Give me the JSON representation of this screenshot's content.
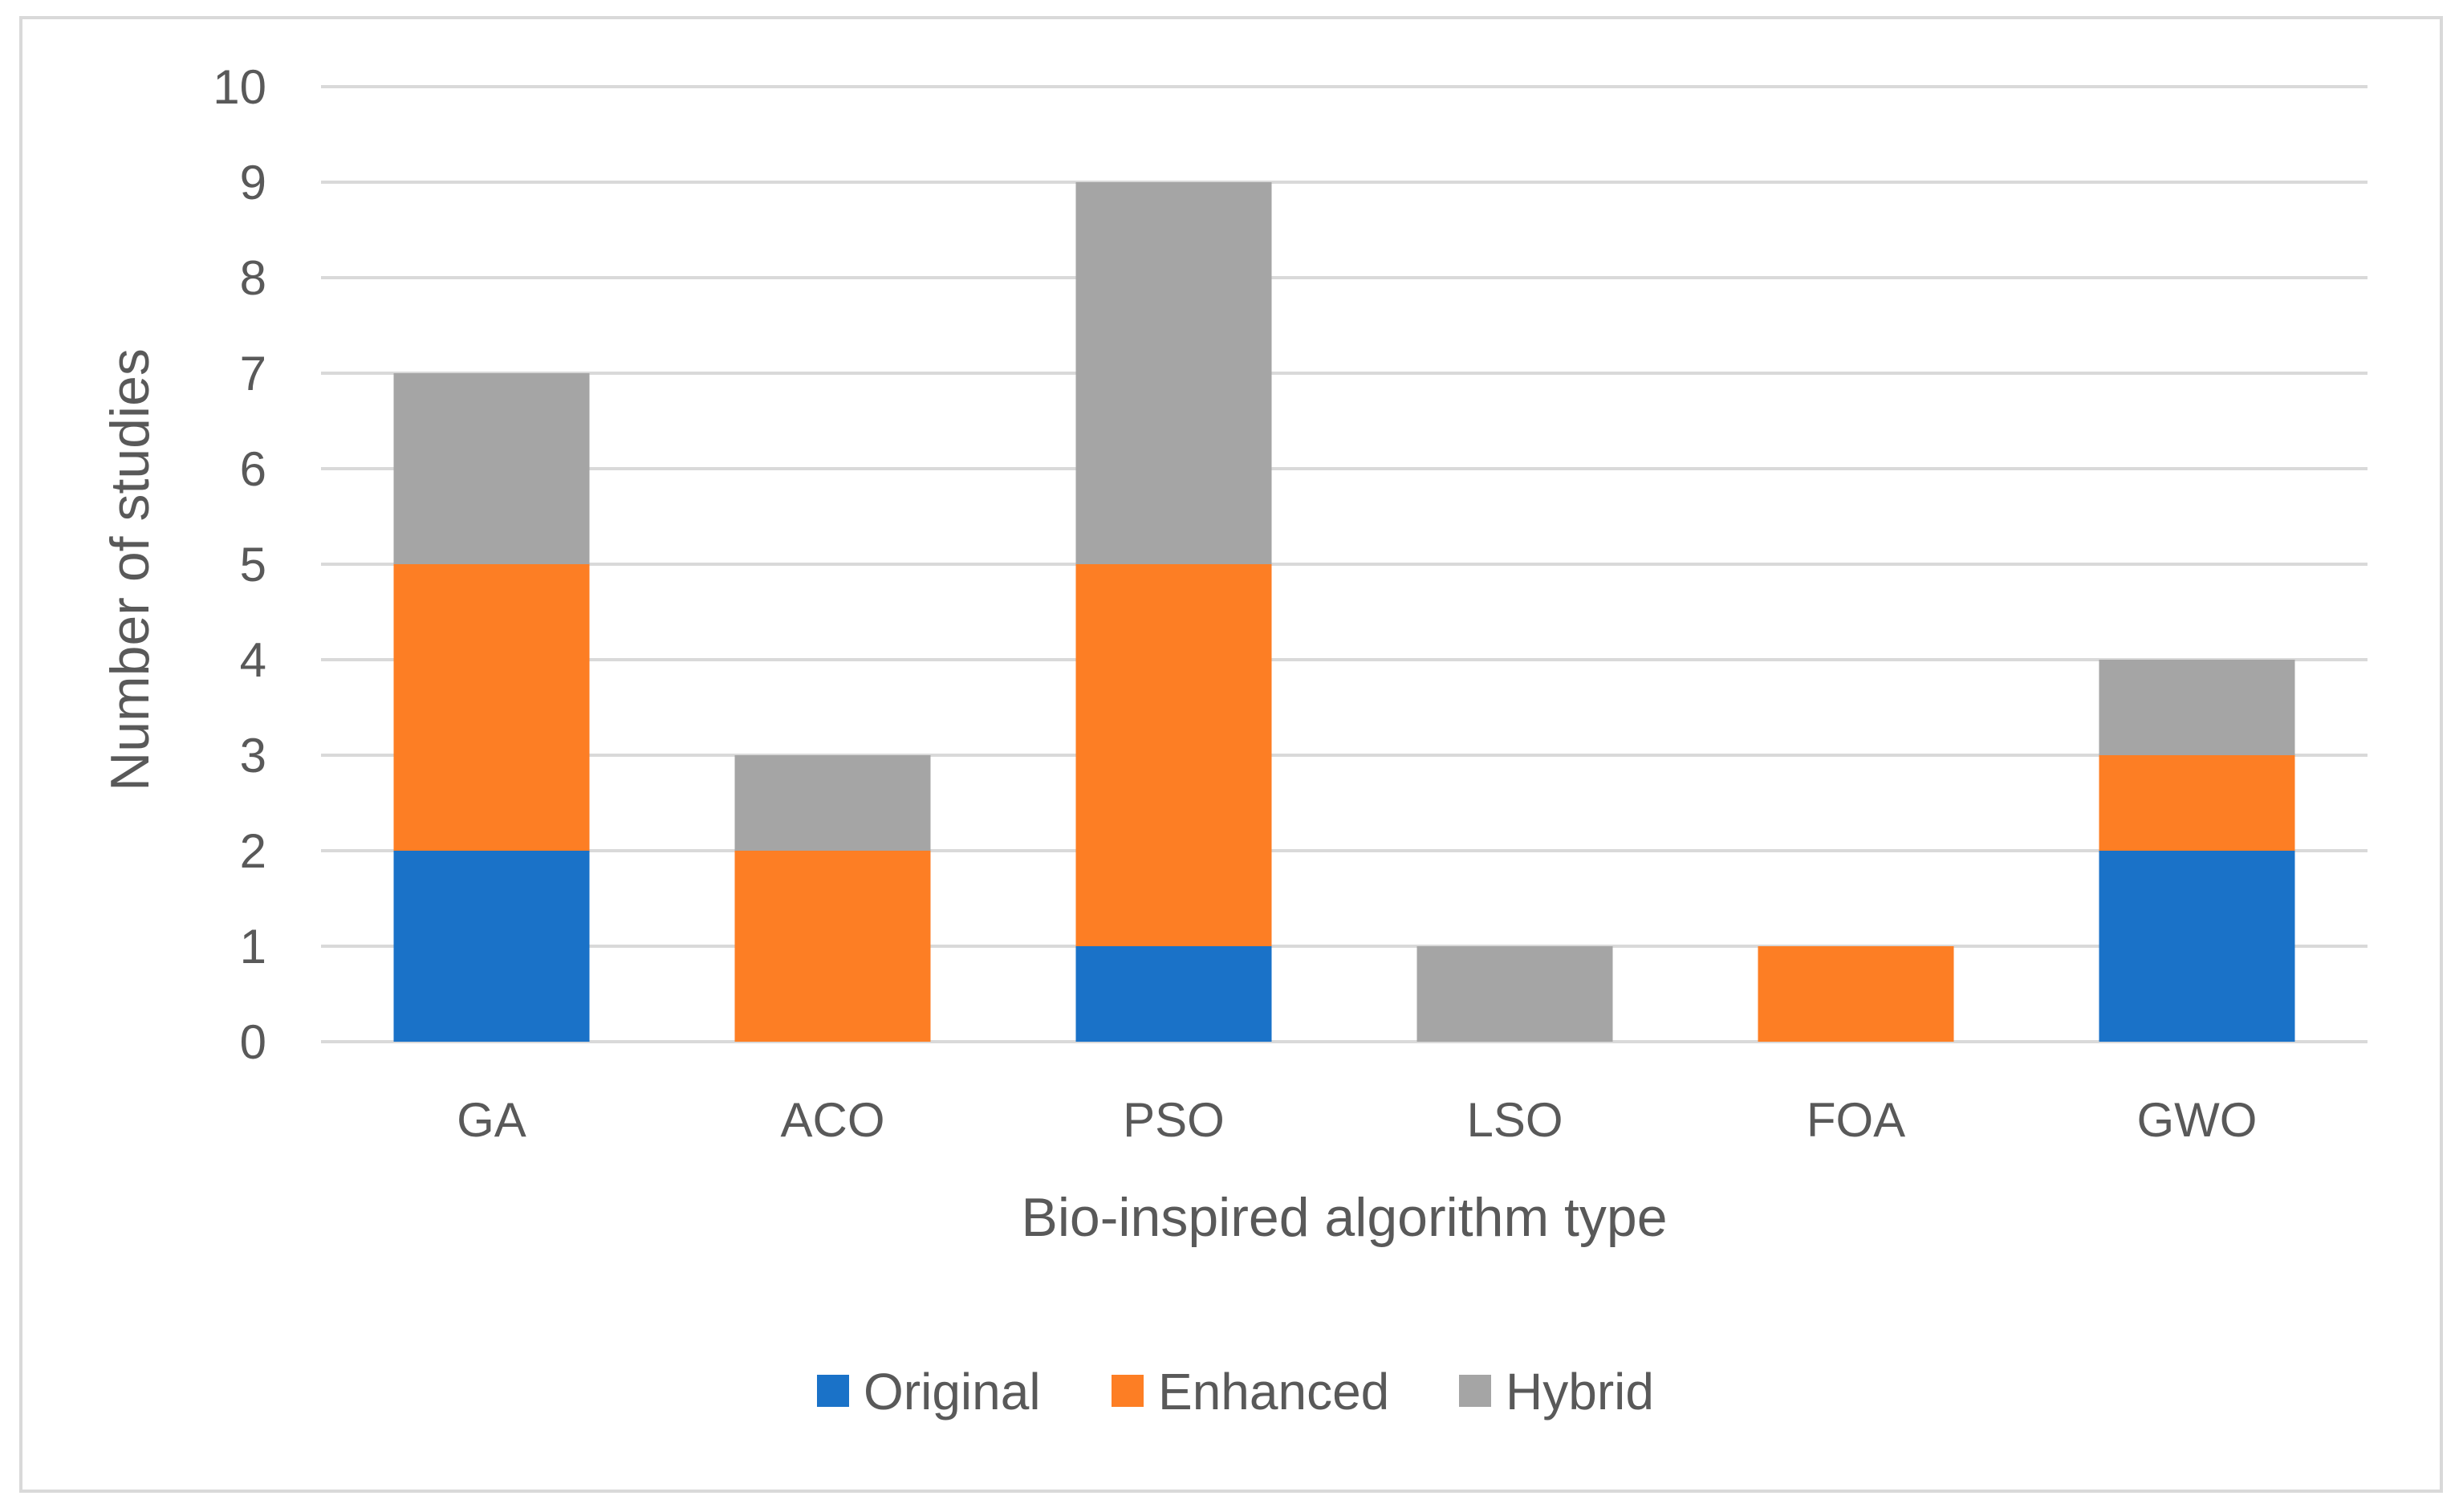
{
  "chart_data": {
    "type": "bar",
    "stacked": true,
    "title": "",
    "xlabel": "Bio-inspired algorithm type",
    "ylabel": "Number of studies",
    "ylim": [
      0,
      10
    ],
    "yticks": [
      0,
      1,
      2,
      3,
      4,
      5,
      6,
      7,
      8,
      9,
      10
    ],
    "grid": true,
    "legend_position": "bottom",
    "categories": [
      "GA",
      "ACO",
      "PSO",
      "LSO",
      "FOA",
      "GWO"
    ],
    "series": [
      {
        "name": "Original",
        "color": "#1a72c8",
        "values": [
          2,
          0,
          1,
          0,
          0,
          2
        ]
      },
      {
        "name": "Enhanced",
        "color": "#fd7e24",
        "values": [
          3,
          2,
          4,
          0,
          1,
          1
        ]
      },
      {
        "name": "Hybrid",
        "color": "#a5a5a5",
        "values": [
          2,
          1,
          4,
          1,
          0,
          1
        ]
      }
    ]
  }
}
